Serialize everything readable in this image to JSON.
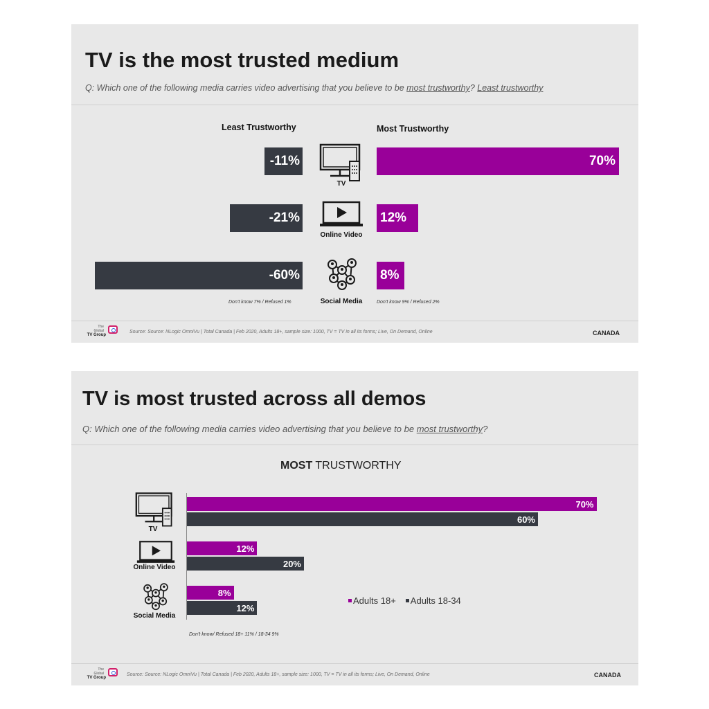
{
  "slide1": {
    "title": "TV is the most trusted medium",
    "question": {
      "prefix": "Q: Which one of the following media carries video advertising that you believe to be ",
      "link1": "most trustworthy",
      "mid": "?  ",
      "link2": "Least trustworthy"
    },
    "least_header": "Least Trustworthy",
    "most_header": "Most Trustworthy",
    "rows": [
      {
        "label": "TV",
        "least_label": "-11%",
        "most_label": "70%"
      },
      {
        "label": "Online Video",
        "least_label": "-21%",
        "most_label": "12%"
      },
      {
        "label": "Social Media",
        "least_label": "-60%",
        "most_label": "8%"
      }
    ],
    "note_left": "Don’t know 7% / Refused 1%",
    "note_right": "Don’t know 9% / Refused 2%",
    "footer": {
      "source": "Source: Source: NLogic OmniVu | Total Canada | Feb 2020, Adults 18+, sample size: 1000, TV = TV in all its forms; Live, On Demand, Online",
      "country": "CANADA",
      "logo": {
        "line1": "The",
        "line2": "Global",
        "line3": "TV Group"
      }
    }
  },
  "slide2": {
    "title": "TV is most trusted across all demos",
    "question": {
      "prefix": "Q: Which one of the following media carries video advertising that you believe to be ",
      "link1": "most trustworthy",
      "suffix": "?"
    },
    "chart_title_bold": "MOST",
    "chart_title_rest": " TRUSTWORTHY",
    "rows": [
      {
        "label": "TV",
        "a18_label": "70%",
        "a1834_label": "60%"
      },
      {
        "label": "Online Video",
        "a18_label": "12%",
        "a1834_label": "20%"
      },
      {
        "label": "Social Media",
        "a18_label": "8%",
        "a1834_label": "12%"
      }
    ],
    "legend": [
      "Adults 18+",
      "Adults 18-34"
    ],
    "note": "Don’t know/ Refused 18+ 11% / 18-34 9%",
    "footer": {
      "source": "Source: Source: NLogic OmniVu | Total Canada | Feb 2020, Adults 18+, sample size: 1000, TV = TV in all its forms; Live, On Demand, Online",
      "country": "CANADA",
      "logo": {
        "line1": "The",
        "line2": "Global",
        "line3": "TV Group"
      }
    }
  },
  "colors": {
    "purple": "#990099",
    "dark": "#363a42",
    "background": "#e8e8e8"
  },
  "icons": [
    "tv-icon",
    "online-video-icon",
    "social-media-icon"
  ],
  "chart_data": [
    {
      "type": "bar",
      "orientation": "diverging-horizontal",
      "title": "TV is the most trusted medium",
      "categories": [
        "TV",
        "Online Video",
        "Social Media"
      ],
      "series": [
        {
          "name": "Least Trustworthy",
          "values": [
            -11,
            -21,
            -60
          ]
        },
        {
          "name": "Most Trustworthy",
          "values": [
            70,
            12,
            8
          ]
        }
      ],
      "unit": "%",
      "grid": false
    },
    {
      "type": "bar",
      "orientation": "horizontal",
      "title": "MOST TRUSTWORTHY",
      "categories": [
        "TV",
        "Online Video",
        "Social Media"
      ],
      "series": [
        {
          "name": "Adults 18+",
          "values": [
            70,
            12,
            8
          ]
        },
        {
          "name": "Adults 18-34",
          "values": [
            60,
            20,
            12
          ]
        }
      ],
      "unit": "%",
      "legend_position": "right",
      "grid": false
    }
  ]
}
